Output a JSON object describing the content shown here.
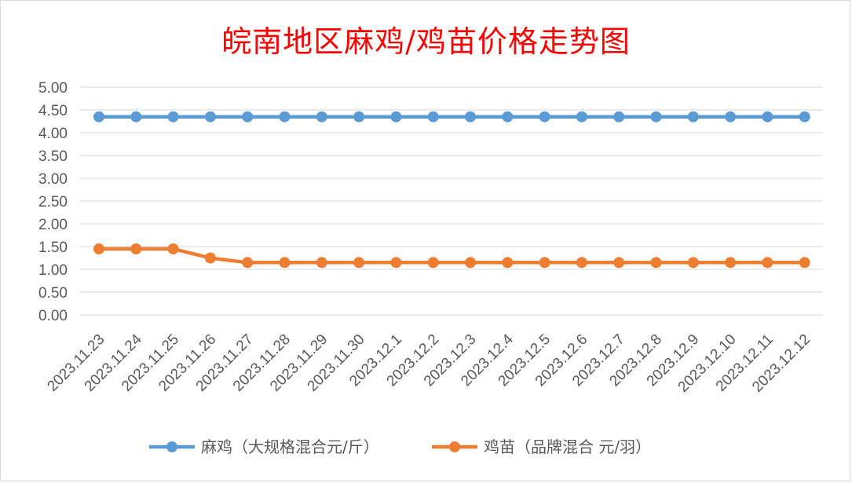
{
  "chart_data": {
    "type": "line",
    "title": "皖南地区麻鸡/鸡苗价格走势图",
    "x": [
      "2023.11.23",
      "2023.11.24",
      "2023.11.25",
      "2023.11.26",
      "2023.11.27",
      "2023.11.28",
      "2023.11.29",
      "2023.11.30",
      "2023.12.1",
      "2023.12.2",
      "2023.12.3",
      "2023.12.4",
      "2023.12.5",
      "2023.12.6",
      "2023.12.7",
      "2023.12.8",
      "2023.12.9",
      "2023.12.10",
      "2023.12.11",
      "2023.12.12"
    ],
    "yticks": [
      "0.00",
      "0.50",
      "1.00",
      "1.50",
      "2.00",
      "2.50",
      "3.00",
      "3.50",
      "4.00",
      "4.50",
      "5.00"
    ],
    "ylim": [
      0,
      5
    ],
    "grid": true,
    "legend_position": "bottom",
    "series": [
      {
        "name": "麻鸡（大规格混合元/斤）",
        "color": "#5b9bd5",
        "values": [
          4.35,
          4.35,
          4.35,
          4.35,
          4.35,
          4.35,
          4.35,
          4.35,
          4.35,
          4.35,
          4.35,
          4.35,
          4.35,
          4.35,
          4.35,
          4.35,
          4.35,
          4.35,
          4.35,
          4.35
        ]
      },
      {
        "name": "鸡苗（品牌混合 元/羽）",
        "color": "#ed7d31",
        "values": [
          1.45,
          1.45,
          1.45,
          1.25,
          1.15,
          1.15,
          1.15,
          1.15,
          1.15,
          1.15,
          1.15,
          1.15,
          1.15,
          1.15,
          1.15,
          1.15,
          1.15,
          1.15,
          1.15,
          1.15
        ]
      }
    ]
  }
}
